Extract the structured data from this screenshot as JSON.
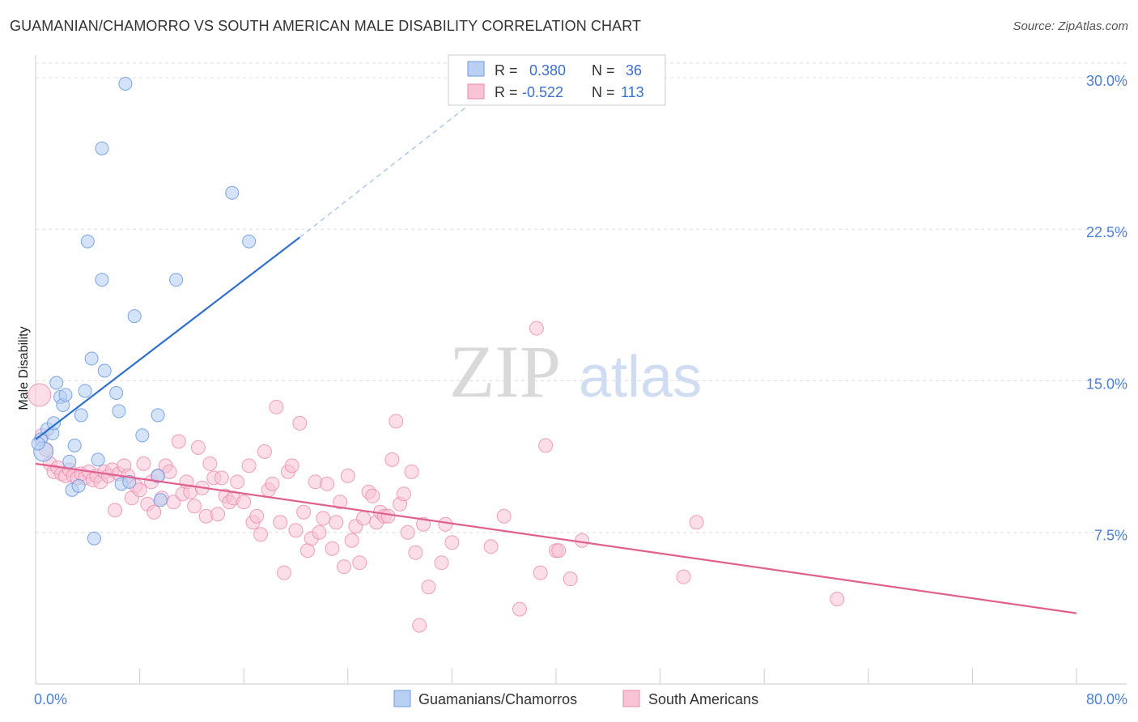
{
  "title": "GUAMANIAN/CHAMORRO VS SOUTH AMERICAN MALE DISABILITY CORRELATION CHART",
  "source": "Source: ZipAtlas.com",
  "watermark": {
    "zip": "ZIP",
    "atlas": "atlas"
  },
  "colors": {
    "blue_fill": "#b9d0f3",
    "blue_stroke": "#6f9be0",
    "blue_line": "#2e6fd0",
    "pink_fill": "#f7c3d5",
    "pink_stroke": "#e88aab",
    "pink_line": "#e0608e",
    "grid": "#dddddd",
    "axis_tick_text": "#4a7fd4"
  },
  "legend": {
    "row1": {
      "r_label": "R =",
      "r_value": "0.380",
      "n_label": "N =",
      "n_value": "36"
    },
    "row2": {
      "r_label": "R =",
      "r_value": "-0.522",
      "n_label": "N =",
      "n_value": "113"
    }
  },
  "bottom_legend": {
    "series1": "Guamanians/Chamorros",
    "series2": "South Americans"
  },
  "chart_data": {
    "type": "scatter",
    "ylabel": "Male Disability",
    "xlim": [
      0,
      80
    ],
    "ylim": [
      0,
      31
    ],
    "x_tick_labels": [
      "0.0%",
      "80.0%"
    ],
    "y_ticks": [
      7.5,
      15.0,
      22.5,
      30.0
    ],
    "y_tick_labels": [
      "7.5%",
      "15.0%",
      "22.5%",
      "30.0%"
    ],
    "series": [
      {
        "name": "Guamanians/Chamorros",
        "r": 0.38,
        "n": 36,
        "trend": {
          "x0": 0,
          "y0": 12.1,
          "x1": 20.3,
          "y1": 22.1,
          "dash_to_x": 33.0,
          "dash_to_y": 28.5
        },
        "points": [
          [
            0.4,
            12.1
          ],
          [
            0.6,
            11.5
          ],
          [
            0.9,
            12.6
          ],
          [
            1.3,
            12.4
          ],
          [
            1.4,
            12.9
          ],
          [
            1.6,
            14.9
          ],
          [
            1.9,
            14.2
          ],
          [
            2.1,
            13.8
          ],
          [
            2.3,
            14.3
          ],
          [
            2.6,
            11.0
          ],
          [
            2.8,
            9.6
          ],
          [
            3.0,
            11.8
          ],
          [
            3.3,
            9.8
          ],
          [
            3.5,
            13.3
          ],
          [
            3.8,
            14.5
          ],
          [
            4.0,
            21.9
          ],
          [
            4.3,
            16.1
          ],
          [
            4.5,
            7.2
          ],
          [
            4.8,
            11.1
          ],
          [
            5.1,
            20.0
          ],
          [
            5.3,
            15.5
          ],
          [
            5.1,
            26.5
          ],
          [
            6.2,
            14.4
          ],
          [
            6.4,
            13.5
          ],
          [
            6.6,
            9.9
          ],
          [
            6.9,
            29.7
          ],
          [
            7.2,
            10.0
          ],
          [
            7.6,
            18.2
          ],
          [
            8.2,
            12.3
          ],
          [
            9.4,
            10.3
          ],
          [
            9.4,
            13.3
          ],
          [
            9.6,
            9.1
          ],
          [
            10.8,
            20.0
          ],
          [
            15.1,
            24.3
          ],
          [
            16.4,
            21.9
          ],
          [
            0.2,
            11.9
          ]
        ]
      },
      {
        "name": "South Americans",
        "r": -0.522,
        "n": 113,
        "trend": {
          "x0": 0,
          "y0": 10.9,
          "x1": 80,
          "y1": 3.5
        },
        "points": [
          [
            0.3,
            14.3
          ],
          [
            0.5,
            12.3
          ],
          [
            0.8,
            11.6
          ],
          [
            1.1,
            10.9
          ],
          [
            1.4,
            10.5
          ],
          [
            1.7,
            10.7
          ],
          [
            2.0,
            10.4
          ],
          [
            2.3,
            10.3
          ],
          [
            2.6,
            10.6
          ],
          [
            2.9,
            10.3
          ],
          [
            3.2,
            10.2
          ],
          [
            3.5,
            10.4
          ],
          [
            3.8,
            10.2
          ],
          [
            4.1,
            10.5
          ],
          [
            4.4,
            10.1
          ],
          [
            4.7,
            10.3
          ],
          [
            5.0,
            10.0
          ],
          [
            5.3,
            10.5
          ],
          [
            5.6,
            10.3
          ],
          [
            5.9,
            10.6
          ],
          [
            6.1,
            8.6
          ],
          [
            6.4,
            10.4
          ],
          [
            6.8,
            10.8
          ],
          [
            7.1,
            10.3
          ],
          [
            7.4,
            9.2
          ],
          [
            7.7,
            9.8
          ],
          [
            8.0,
            9.6
          ],
          [
            8.3,
            10.9
          ],
          [
            8.6,
            8.9
          ],
          [
            8.9,
            10.0
          ],
          [
            9.1,
            8.5
          ],
          [
            9.4,
            10.3
          ],
          [
            9.7,
            9.2
          ],
          [
            10.0,
            10.8
          ],
          [
            10.3,
            10.5
          ],
          [
            10.6,
            9.0
          ],
          [
            11.0,
            12.0
          ],
          [
            11.3,
            9.4
          ],
          [
            11.6,
            10.0
          ],
          [
            11.9,
            9.5
          ],
          [
            12.2,
            8.8
          ],
          [
            12.5,
            11.7
          ],
          [
            12.8,
            9.7
          ],
          [
            13.1,
            8.3
          ],
          [
            13.4,
            10.9
          ],
          [
            13.7,
            10.2
          ],
          [
            14.0,
            8.4
          ],
          [
            14.3,
            10.2
          ],
          [
            14.6,
            9.3
          ],
          [
            14.9,
            9.0
          ],
          [
            15.2,
            9.2
          ],
          [
            15.5,
            10.0
          ],
          [
            16.0,
            9.0
          ],
          [
            16.4,
            10.8
          ],
          [
            16.7,
            8.0
          ],
          [
            17.0,
            8.3
          ],
          [
            17.3,
            7.4
          ],
          [
            17.6,
            11.5
          ],
          [
            17.9,
            9.6
          ],
          [
            18.2,
            9.9
          ],
          [
            18.5,
            13.7
          ],
          [
            18.8,
            8.0
          ],
          [
            19.1,
            5.5
          ],
          [
            19.4,
            10.5
          ],
          [
            19.7,
            10.8
          ],
          [
            20.0,
            7.6
          ],
          [
            20.3,
            12.9
          ],
          [
            20.6,
            8.5
          ],
          [
            20.9,
            6.6
          ],
          [
            21.2,
            7.2
          ],
          [
            21.5,
            10.0
          ],
          [
            21.8,
            7.5
          ],
          [
            22.1,
            8.2
          ],
          [
            22.4,
            9.9
          ],
          [
            22.8,
            6.7
          ],
          [
            23.1,
            8.0
          ],
          [
            23.4,
            9.0
          ],
          [
            23.7,
            5.8
          ],
          [
            24.0,
            10.3
          ],
          [
            24.3,
            7.1
          ],
          [
            24.6,
            7.8
          ],
          [
            24.9,
            6.0
          ],
          [
            25.2,
            8.2
          ],
          [
            25.6,
            9.5
          ],
          [
            25.9,
            9.3
          ],
          [
            26.2,
            8.0
          ],
          [
            26.5,
            8.5
          ],
          [
            26.8,
            8.3
          ],
          [
            27.1,
            8.3
          ],
          [
            27.4,
            11.1
          ],
          [
            27.7,
            13.0
          ],
          [
            28.0,
            8.9
          ],
          [
            28.3,
            9.4
          ],
          [
            28.6,
            7.5
          ],
          [
            28.9,
            10.5
          ],
          [
            29.2,
            6.5
          ],
          [
            29.5,
            2.9
          ],
          [
            29.8,
            7.9
          ],
          [
            30.2,
            4.8
          ],
          [
            31.2,
            6.0
          ],
          [
            31.5,
            7.9
          ],
          [
            32.0,
            7.0
          ],
          [
            35.0,
            6.8
          ],
          [
            36.0,
            8.3
          ],
          [
            37.2,
            3.7
          ],
          [
            38.5,
            17.6
          ],
          [
            38.8,
            5.5
          ],
          [
            39.2,
            11.8
          ],
          [
            40.0,
            6.6
          ],
          [
            41.1,
            5.2
          ],
          [
            42.0,
            7.1
          ],
          [
            49.8,
            5.3
          ],
          [
            50.8,
            8.0
          ],
          [
            61.6,
            4.2
          ],
          [
            40.2,
            6.6
          ]
        ]
      }
    ]
  }
}
